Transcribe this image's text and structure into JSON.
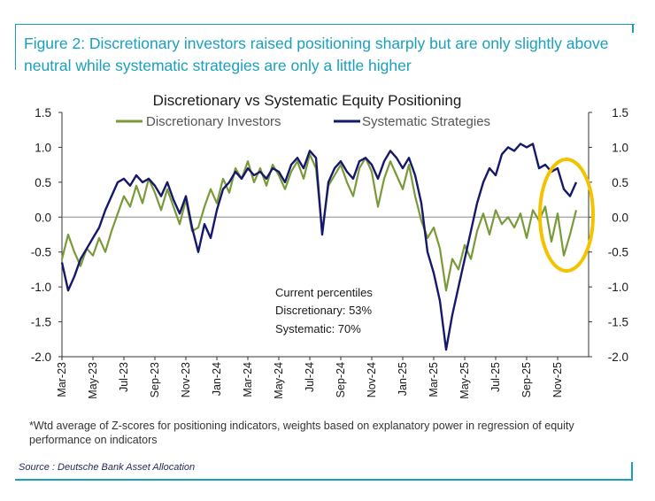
{
  "figure": {
    "title": "Figure 2: Discretionary investors raised positioning sharply but are only slightly above neutral while systematic strategies are only a little higher",
    "footnote": "*Wtd average of Z-scores for positioning indicators, weights based on explanatory power in regression of equity performance on indicators",
    "source": "Source : Deutsche Bank Asset Allocation",
    "accent_color": "#1aa0be"
  },
  "chart_data": {
    "type": "line",
    "title": "Discretionary  vs Systematic Equity Positioning",
    "xlabel": "",
    "ylabel": "",
    "ylim": [
      -2.0,
      1.5
    ],
    "y_ticks": [
      "1.5",
      "1.0",
      "0.5",
      "0.0",
      "-0.5",
      "-1.0",
      "-1.5",
      "-2.0"
    ],
    "y_tick_values": [
      1.5,
      1.0,
      0.5,
      0.0,
      -0.5,
      -1.0,
      -1.5,
      -2.0
    ],
    "x_tick_labels": [
      "Mar-23",
      "May-23",
      "Jul-23",
      "Sep-23",
      "Nov-23",
      "Jan-24",
      "Mar-24",
      "May-24",
      "Jul-24",
      "Sep-24",
      "Nov-24",
      "Jan-25",
      "Mar-25",
      "May-25",
      "Jul-25",
      "Sep-25",
      "Nov-25"
    ],
    "x_range_months": [
      0,
      34
    ],
    "legend_position": "top-center",
    "series": [
      {
        "name": "Discretionary Investors",
        "color": "#7a9a3a",
        "x": [
          0,
          0.4,
          0.8,
          1.2,
          1.6,
          2.0,
          2.4,
          2.8,
          3.2,
          3.6,
          4.0,
          4.4,
          4.8,
          5.2,
          5.6,
          6.0,
          6.4,
          6.8,
          7.2,
          7.6,
          8.0,
          8.4,
          8.8,
          9.2,
          9.6,
          10.0,
          10.4,
          10.8,
          11.2,
          11.6,
          12.0,
          12.4,
          12.8,
          13.2,
          13.6,
          14.0,
          14.4,
          14.8,
          15.2,
          15.6,
          16.0,
          16.4,
          16.8,
          17.2,
          17.6,
          18.0,
          18.4,
          18.8,
          19.2,
          19.6,
          20.0,
          20.4,
          20.8,
          21.2,
          21.6,
          22.0,
          22.4,
          22.8,
          23.2,
          23.6,
          24.0,
          24.4,
          24.8,
          25.2,
          25.6,
          26.0,
          26.4,
          26.8,
          27.2,
          27.6,
          28.0,
          28.4,
          28.8,
          29.2,
          29.6,
          30.0,
          30.4,
          30.8,
          31.2,
          31.6,
          32.0,
          32.4,
          32.8,
          33.2
        ],
        "values": [
          -0.6,
          -0.25,
          -0.5,
          -0.7,
          -0.45,
          -0.55,
          -0.3,
          -0.5,
          -0.2,
          0.05,
          0.3,
          0.15,
          0.45,
          0.2,
          0.55,
          0.35,
          0.1,
          0.4,
          0.15,
          -0.1,
          0.25,
          -0.2,
          -0.15,
          0.15,
          0.4,
          0.2,
          0.55,
          0.35,
          0.7,
          0.55,
          0.8,
          0.5,
          0.7,
          0.45,
          0.75,
          0.6,
          0.4,
          0.65,
          0.8,
          0.55,
          0.9,
          0.7,
          -0.2,
          0.45,
          0.6,
          0.75,
          0.5,
          0.3,
          0.7,
          0.85,
          0.65,
          0.15,
          0.55,
          0.8,
          0.6,
          0.4,
          0.75,
          0.3,
          -0.05,
          -0.3,
          -0.15,
          -0.45,
          -1.05,
          -0.6,
          -0.75,
          -0.4,
          -0.6,
          -0.2,
          0.05,
          -0.25,
          0.1,
          -0.1,
          0.0,
          -0.15,
          0.05,
          -0.3,
          0.1,
          -0.05,
          0.15,
          -0.35,
          0.05,
          -0.55,
          -0.25,
          0.1
        ]
      },
      {
        "name": "Systematic Strategies",
        "color": "#16186b",
        "x": [
          0,
          0.4,
          0.8,
          1.2,
          1.6,
          2.0,
          2.4,
          2.8,
          3.2,
          3.6,
          4.0,
          4.4,
          4.8,
          5.2,
          5.6,
          6.0,
          6.4,
          6.8,
          7.2,
          7.6,
          8.0,
          8.4,
          8.8,
          9.2,
          9.6,
          10.0,
          10.4,
          10.8,
          11.2,
          11.6,
          12.0,
          12.4,
          12.8,
          13.2,
          13.6,
          14.0,
          14.4,
          14.8,
          15.2,
          15.6,
          16.0,
          16.4,
          16.8,
          17.2,
          17.6,
          18.0,
          18.4,
          18.8,
          19.2,
          19.6,
          20.0,
          20.4,
          20.8,
          21.2,
          21.6,
          22.0,
          22.4,
          22.8,
          23.2,
          23.6,
          24.0,
          24.4,
          24.8,
          25.2,
          25.6,
          26.0,
          26.4,
          26.8,
          27.2,
          27.6,
          28.0,
          28.4,
          28.8,
          29.2,
          29.6,
          30.0,
          30.4,
          30.8,
          31.2,
          31.6,
          32.0,
          32.4,
          32.8,
          33.2
        ],
        "values": [
          -0.65,
          -1.05,
          -0.85,
          -0.6,
          -0.45,
          -0.3,
          -0.15,
          0.1,
          0.3,
          0.5,
          0.55,
          0.45,
          0.6,
          0.5,
          0.55,
          0.45,
          0.3,
          0.5,
          0.25,
          0.05,
          0.3,
          -0.15,
          -0.5,
          -0.1,
          -0.3,
          0.1,
          0.4,
          0.5,
          0.65,
          0.55,
          0.7,
          0.6,
          0.65,
          0.55,
          0.7,
          0.65,
          0.5,
          0.75,
          0.85,
          0.7,
          0.95,
          0.85,
          -0.25,
          0.5,
          0.7,
          0.8,
          0.65,
          0.55,
          0.8,
          0.85,
          0.75,
          0.55,
          0.8,
          0.95,
          0.85,
          0.7,
          0.85,
          0.6,
          0.2,
          -0.5,
          -0.8,
          -1.2,
          -1.9,
          -1.4,
          -1.0,
          -0.6,
          -0.2,
          0.2,
          0.5,
          0.7,
          0.6,
          0.9,
          1.0,
          0.95,
          1.05,
          1.0,
          1.05,
          0.7,
          0.75,
          0.65,
          0.7,
          0.4,
          0.3,
          0.5
        ]
      }
    ],
    "annotations": {
      "percentile_header": "Current percentiles",
      "percentile_discretionary": "Discretionary: 53%",
      "percentile_systematic": "Systematic: 70%",
      "highlight_circle_color": "#f2c300"
    }
  }
}
